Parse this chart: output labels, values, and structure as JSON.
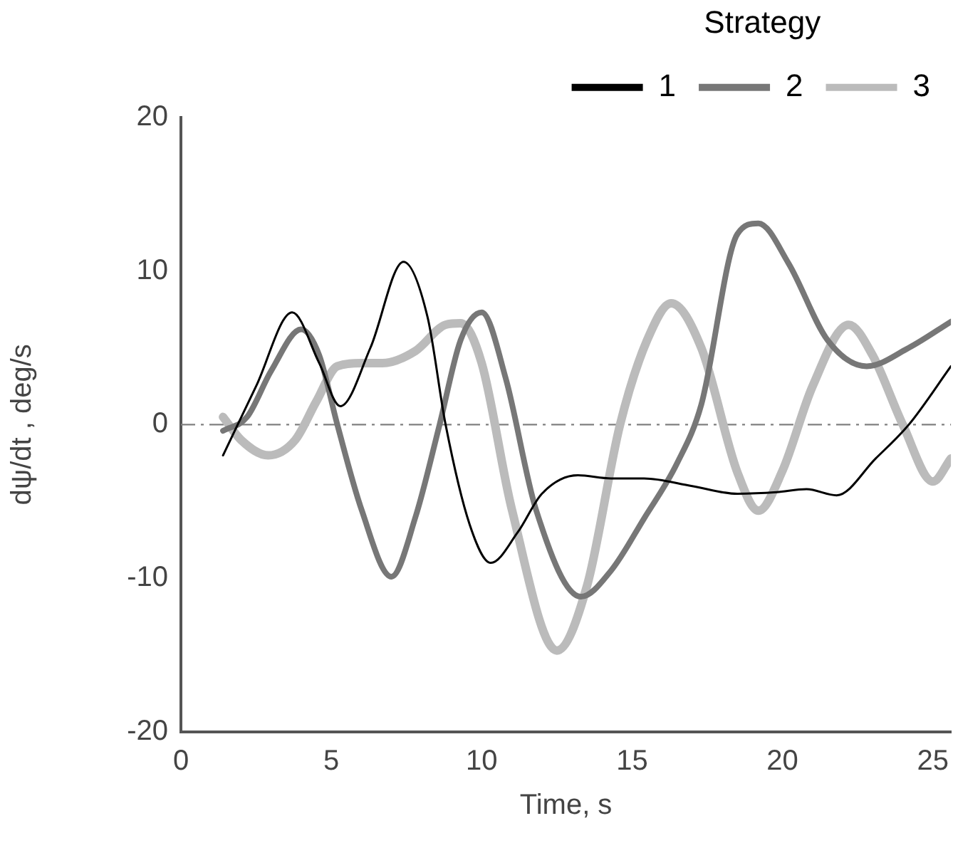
{
  "chart_data": {
    "type": "line",
    "xlabel": "Time, s",
    "ylabel": "dψ/dt , deg/s",
    "legend_title": "Strategy",
    "legend": "top right",
    "xlim": [
      0,
      25.6
    ],
    "ylim": [
      -20,
      20
    ],
    "xticks": [
      0,
      5,
      10,
      15,
      20,
      25
    ],
    "yticks": [
      -20,
      -10,
      0,
      10,
      20
    ],
    "grid": false,
    "marker": "none",
    "line_style": "solid",
    "ref_lines": [
      {
        "axis": "y",
        "value": 0,
        "color": "#808080"
      }
    ],
    "series": [
      {
        "name": "1",
        "color": "#000000",
        "x": [
          1.4,
          2.5,
          3.7,
          4.6,
          5.3,
          6.3,
          7.4,
          8.2,
          8.8,
          9.6,
          10.3,
          11.2,
          12.0,
          13.2,
          14.3,
          15.4,
          17.0,
          18.5,
          19.8,
          20.8,
          21.8,
          23.1,
          24.2,
          25.6
        ],
        "values": [
          -2.0,
          2.5,
          7.3,
          4.0,
          1.2,
          5.0,
          10.6,
          7.0,
          0,
          -6.5,
          -9.0,
          -7.0,
          -4.5,
          -3.3,
          -3.5,
          -3.5,
          -4.0,
          -4.5,
          -4.4,
          -4.2,
          -4.6,
          -2.2,
          0,
          3.8
        ]
      },
      {
        "name": "2",
        "color": "#777777",
        "x": [
          1.4,
          2.2,
          3.0,
          4.0,
          4.6,
          5.2,
          6.0,
          7.0,
          7.8,
          8.6,
          9.3,
          10.0,
          10.8,
          11.8,
          13.3,
          14.3,
          15.4,
          16.5,
          17.3,
          18.5,
          19.2,
          20.2,
          21.5,
          22.8,
          24.2,
          25.6
        ],
        "values": [
          -0.4,
          0.5,
          3.5,
          6.2,
          4.5,
          0,
          -5.5,
          -9.9,
          -6.0,
          0,
          5.5,
          7.3,
          3.0,
          -5.5,
          -11.2,
          -9.5,
          -6.1,
          -2.5,
          1.3,
          12.4,
          13.1,
          10.5,
          5.5,
          3.8,
          5.0,
          6.7
        ]
      },
      {
        "name": "3",
        "color": "#bbbbbb",
        "x": [
          1.4,
          2.0,
          2.9,
          3.8,
          4.5,
          5.2,
          6.0,
          6.7,
          7.8,
          8.8,
          9.3,
          10.0,
          11.0,
          12.5,
          13.5,
          14.6,
          15.5,
          16.3,
          17.3,
          18.5,
          19.2,
          20.0,
          21.0,
          22.2,
          23.0,
          24.0,
          25.0,
          25.6
        ],
        "values": [
          0.5,
          -1.0,
          -2.0,
          -1.0,
          1.5,
          3.8,
          4.0,
          4.0,
          4.8,
          6.5,
          6.6,
          4.0,
          -5.5,
          -14.7,
          -10.5,
          0,
          5.5,
          7.9,
          5.0,
          -3.1,
          -5.6,
          -3.0,
          2.5,
          6.5,
          4.5,
          0,
          -3.7,
          -2.2
        ]
      }
    ]
  }
}
